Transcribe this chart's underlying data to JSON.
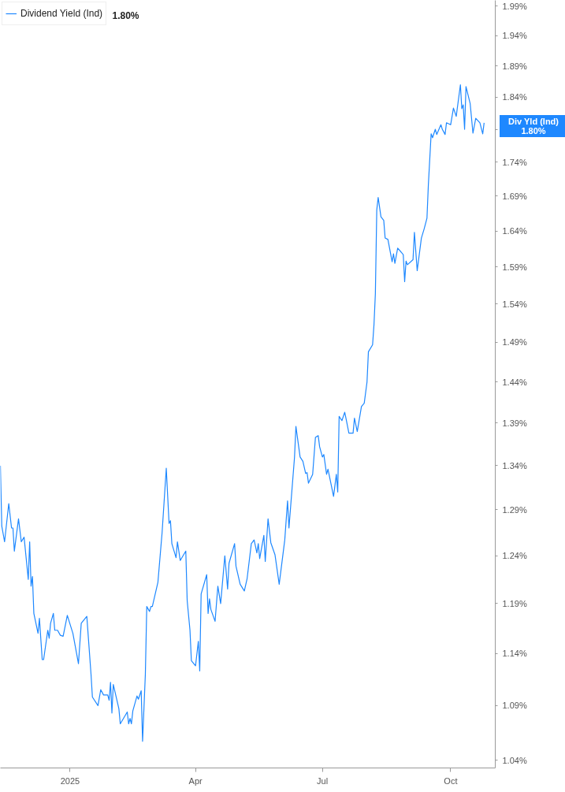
{
  "chart_data": {
    "type": "line",
    "log": "y",
    "grid": false,
    "legend": "top left",
    "marker": "none",
    "line_style": "solid",
    "xlim": [
      "2024-11-12",
      "2025-11-02"
    ],
    "ylim": [
      1.033,
      2.0
    ],
    "xticks": [
      {
        "value": "2025-01-01",
        "label": "2025"
      },
      {
        "value": "2025-04-01",
        "label": "Apr"
      },
      {
        "value": "2025-07-01",
        "label": "Jul"
      },
      {
        "value": "2025-10-01",
        "label": "Oct"
      }
    ],
    "yticks": [
      {
        "value": 1.04,
        "label": "1.04%"
      },
      {
        "value": 1.09,
        "label": "1.09%"
      },
      {
        "value": 1.14,
        "label": "1.14%"
      },
      {
        "value": 1.19,
        "label": "1.19%"
      },
      {
        "value": 1.24,
        "label": "1.24%"
      },
      {
        "value": 1.29,
        "label": "1.29%"
      },
      {
        "value": 1.34,
        "label": "1.34%"
      },
      {
        "value": 1.39,
        "label": "1.39%"
      },
      {
        "value": 1.44,
        "label": "1.44%"
      },
      {
        "value": 1.49,
        "label": "1.49%"
      },
      {
        "value": 1.54,
        "label": "1.54%"
      },
      {
        "value": 1.59,
        "label": "1.59%"
      },
      {
        "value": 1.64,
        "label": "1.64%"
      },
      {
        "value": 1.69,
        "label": "1.69%"
      },
      {
        "value": 1.74,
        "label": "1.74%"
      },
      {
        "value": 1.79,
        "label": null
      },
      {
        "value": 1.84,
        "label": "1.84%"
      },
      {
        "value": 1.89,
        "label": "1.89%"
      },
      {
        "value": 1.94,
        "label": "1.94%"
      },
      {
        "value": 1.99,
        "label": "1.99%"
      }
    ],
    "annotations": [
      "1.80%",
      "Div Yld (Ind)",
      "1.80%"
    ],
    "series": [
      {
        "name": "Dividend Yield (Ind)",
        "color": "#1e88ff",
        "x": [
          "2024-11-12",
          "2024-11-13",
          "2024-11-15",
          "2024-11-18",
          "2024-11-20",
          "2024-11-21",
          "2024-11-22",
          "2024-11-25",
          "2024-11-27",
          "2024-11-29",
          "2024-12-02",
          "2024-12-03",
          "2024-12-04",
          "2024-12-05",
          "2024-12-06",
          "2024-12-09",
          "2024-12-10",
          "2024-12-12",
          "2024-12-13",
          "2024-12-16",
          "2024-12-17",
          "2024-12-18",
          "2024-12-20",
          "2024-12-21",
          "2024-12-23",
          "2024-12-25",
          "2024-12-27",
          "2024-12-30",
          "2025-01-03",
          "2025-01-07",
          "2025-01-09",
          "2025-01-13",
          "2025-01-16",
          "2025-01-17",
          "2025-01-21",
          "2025-01-23",
          "2025-01-25",
          "2025-01-28",
          "2025-01-29",
          "2025-01-30",
          "2025-01-31",
          "2025-02-01",
          "2025-02-05",
          "2025-02-06",
          "2025-02-11",
          "2025-02-12",
          "2025-02-13",
          "2025-02-14",
          "2025-02-15",
          "2025-02-18",
          "2025-02-19",
          "2025-02-21",
          "2025-02-22",
          "2025-02-24",
          "2025-02-25",
          "2025-02-27",
          "2025-02-28",
          "2025-03-01",
          "2025-03-05",
          "2025-03-08",
          "2025-03-11",
          "2025-03-13",
          "2025-03-14",
          "2025-03-15",
          "2025-03-18",
          "2025-03-19",
          "2025-03-21",
          "2025-03-25",
          "2025-03-26",
          "2025-03-28",
          "2025-03-29",
          "2025-04-01",
          "2025-04-03",
          "2025-04-04",
          "2025-04-05",
          "2025-04-09",
          "2025-04-10",
          "2025-04-11",
          "2025-04-12",
          "2025-04-15",
          "2025-04-17",
          "2025-04-19",
          "2025-04-22",
          "2025-04-24",
          "2025-04-25",
          "2025-04-29",
          "2025-04-30",
          "2025-05-03",
          "2025-05-06",
          "2025-05-08",
          "2025-05-11",
          "2025-05-13",
          "2025-05-15",
          "2025-05-16",
          "2025-05-17",
          "2025-05-20",
          "2025-05-21",
          "2025-05-23",
          "2025-05-25",
          "2025-05-28",
          "2025-05-31",
          "2025-06-04",
          "2025-06-06",
          "2025-06-07",
          "2025-06-11",
          "2025-06-12",
          "2025-06-15",
          "2025-06-17",
          "2025-06-19",
          "2025-06-20",
          "2025-06-21",
          "2025-06-24",
          "2025-06-26",
          "2025-06-28",
          "2025-06-29",
          "2025-07-01",
          "2025-07-02",
          "2025-07-04",
          "2025-07-05",
          "2025-07-09",
          "2025-07-11",
          "2025-07-12",
          "2025-07-13",
          "2025-07-15",
          "2025-07-17",
          "2025-07-18",
          "2025-07-20",
          "2025-07-23",
          "2025-07-24",
          "2025-07-26",
          "2025-07-29",
          "2025-07-31",
          "2025-08-02",
          "2025-08-03",
          "2025-08-06",
          "2025-08-07",
          "2025-08-08",
          "2025-08-09",
          "2025-08-10",
          "2025-08-12",
          "2025-08-14",
          "2025-08-15",
          "2025-08-17",
          "2025-08-20",
          "2025-08-21",
          "2025-08-22",
          "2025-08-24",
          "2025-08-28",
          "2025-08-29",
          "2025-08-30",
          "2025-08-31",
          "2025-09-04",
          "2025-09-05",
          "2025-09-07",
          "2025-09-10",
          "2025-09-12",
          "2025-09-14",
          "2025-09-15",
          "2025-09-17",
          "2025-09-18",
          "2025-09-20",
          "2025-09-21",
          "2025-09-24",
          "2025-09-25",
          "2025-09-27",
          "2025-09-28",
          "2025-10-01",
          "2025-10-03",
          "2025-10-05",
          "2025-10-08",
          "2025-10-09",
          "2025-10-10",
          "2025-10-11",
          "2025-10-12",
          "2025-10-15",
          "2025-10-17",
          "2025-10-19",
          "2025-10-22",
          "2025-10-24",
          "2025-10-25"
        ],
        "values": [
          1.34,
          1.272,
          1.255,
          1.297,
          1.27,
          1.27,
          1.245,
          1.28,
          1.255,
          1.26,
          1.215,
          1.255,
          1.208,
          1.218,
          1.18,
          1.16,
          1.175,
          1.134,
          1.134,
          1.163,
          1.155,
          1.17,
          1.18,
          1.163,
          1.163,
          1.158,
          1.157,
          1.178,
          1.16,
          1.13,
          1.17,
          1.177,
          1.12,
          1.098,
          1.09,
          1.105,
          1.1,
          1.1,
          1.095,
          1.112,
          1.083,
          1.11,
          1.087,
          1.073,
          1.084,
          1.073,
          1.078,
          1.073,
          1.085,
          1.099,
          1.096,
          1.104,
          1.057,
          1.12,
          1.187,
          1.182,
          1.187,
          1.187,
          1.212,
          1.265,
          1.337,
          1.275,
          1.278,
          1.253,
          1.238,
          1.255,
          1.235,
          1.245,
          1.193,
          1.163,
          1.133,
          1.128,
          1.152,
          1.123,
          1.2,
          1.22,
          1.18,
          1.195,
          1.184,
          1.172,
          1.208,
          1.19,
          1.24,
          1.205,
          1.232,
          1.253,
          1.229,
          1.21,
          1.203,
          1.216,
          1.253,
          1.257,
          1.243,
          1.253,
          1.237,
          1.262,
          1.234,
          1.28,
          1.254,
          1.241,
          1.21,
          1.257,
          1.3,
          1.27,
          1.35,
          1.386,
          1.35,
          1.345,
          1.331,
          1.332,
          1.32,
          1.33,
          1.373,
          1.375,
          1.362,
          1.35,
          1.353,
          1.33,
          1.336,
          1.305,
          1.33,
          1.31,
          1.398,
          1.393,
          1.403,
          1.395,
          1.378,
          1.378,
          1.396,
          1.38,
          1.41,
          1.414,
          1.44,
          1.478,
          1.487,
          1.513,
          1.554,
          1.67,
          1.688,
          1.66,
          1.655,
          1.63,
          1.628,
          1.597,
          1.608,
          1.595,
          1.616,
          1.607,
          1.57,
          1.598,
          1.593,
          1.6,
          1.638,
          1.585,
          1.63,
          1.643,
          1.658,
          1.706,
          1.783,
          1.777,
          1.79,
          1.782,
          1.797,
          1.79,
          1.782,
          1.8,
          1.797,
          1.823,
          1.81,
          1.86,
          1.822,
          1.828,
          1.79,
          1.857,
          1.83,
          1.784,
          1.807,
          1.8,
          1.783,
          1.8
        ]
      }
    ]
  }
}
